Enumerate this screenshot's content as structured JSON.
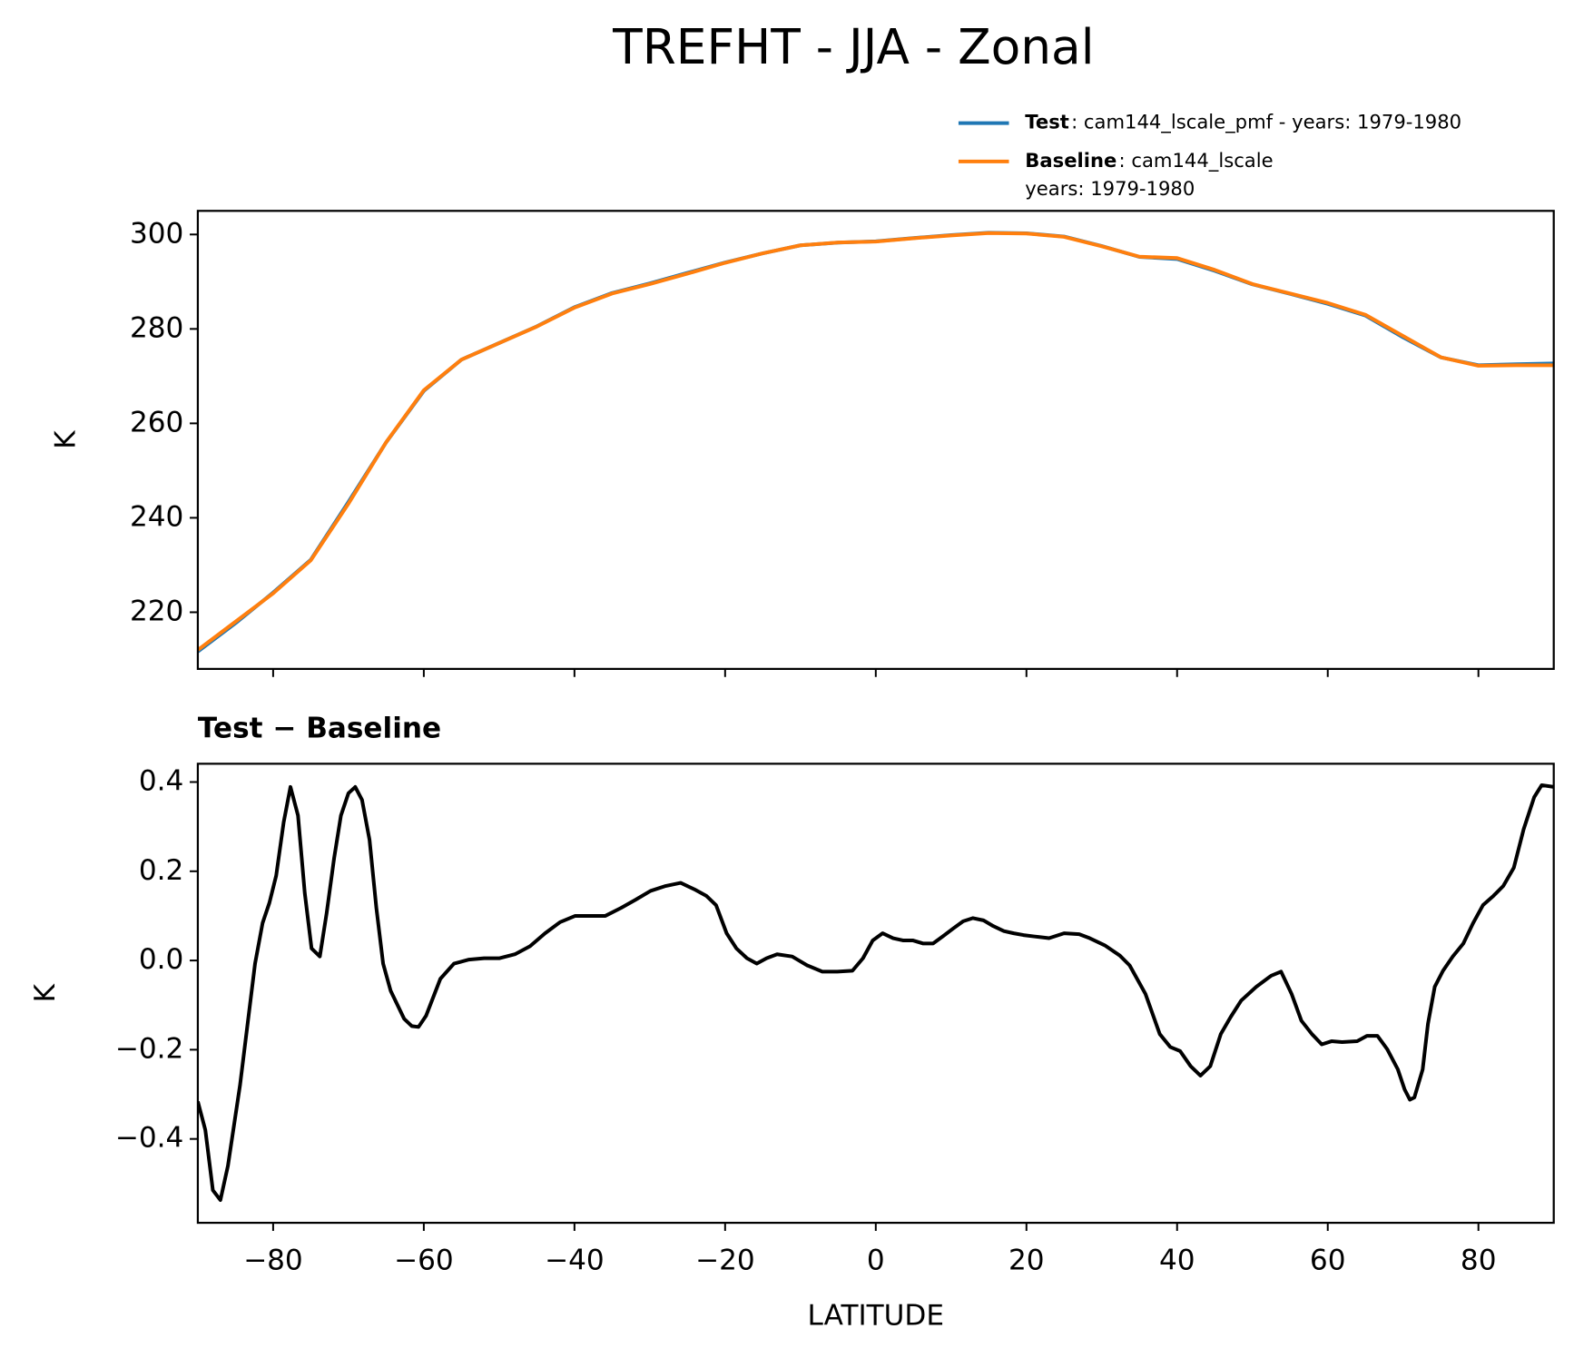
{
  "chart_data": [
    {
      "type": "line",
      "title": "TREFHT - JJA - Zonal",
      "ylabel": "K",
      "legend": "outside upper right",
      "xticklabels": false,
      "x": [
        -90,
        -85,
        -80,
        -75,
        -70,
        -65,
        -60,
        -55,
        -50,
        -45,
        -40,
        -35,
        -30,
        -25,
        -20,
        -15,
        -10,
        -5,
        0,
        5,
        10,
        15,
        20,
        25,
        30,
        35,
        40,
        45,
        50,
        55,
        60,
        65,
        70,
        75,
        80,
        85,
        90
      ],
      "series": [
        {
          "name": "Test",
          "description": [
            ": cam144_lscale_pmf - years: 1979-1980"
          ],
          "color": "#1f77b4",
          "values": [
            211.68,
            217.67,
            224.16,
            231.12,
            243.38,
            255.97,
            266.87,
            273.5,
            277.01,
            280.54,
            284.6,
            287.6,
            289.65,
            291.87,
            294.07,
            296.0,
            297.7,
            298.28,
            298.55,
            299.25,
            299.87,
            300.38,
            300.26,
            299.56,
            297.54,
            295.25,
            294.8,
            292.3,
            289.44,
            287.43,
            285.32,
            282.83,
            278.21,
            273.98,
            272.31,
            272.52,
            272.69
          ]
        },
        {
          "name": "Baseline",
          "description": [
            ": cam144_lscale",
            "years: 1979-1980"
          ],
          "color": "#ff7f0e",
          "values": [
            212,
            218,
            224,
            231,
            243,
            256,
            267,
            273.5,
            277,
            280.5,
            284.5,
            287.5,
            289.5,
            291.7,
            294,
            296,
            297.7,
            298.3,
            298.5,
            299.2,
            299.8,
            300.3,
            300.2,
            299.5,
            297.5,
            295.3,
            295,
            292.5,
            289.5,
            287.5,
            285.5,
            283,
            278.5,
            274,
            272.2,
            272.3,
            272.3
          ]
        }
      ],
      "xlim": [
        -90,
        90
      ],
      "xticks": [
        {
          "value": -80,
          "label": "−80"
        },
        {
          "value": -60,
          "label": "−60"
        },
        {
          "value": -40,
          "label": "−40"
        },
        {
          "value": -20,
          "label": "−20"
        },
        0,
        20,
        40,
        60,
        80
      ],
      "ylim": [
        208,
        305
      ],
      "yticks": [
        220,
        240,
        260,
        280,
        300
      ]
    },
    {
      "type": "line",
      "title": "Test − Baseline",
      "ylabel": "K",
      "xlabel": "LATITUDE",
      "xticklabels": true,
      "color": "#000000",
      "x": [
        -90,
        -89,
        -88,
        -87,
        -86,
        -84.4,
        -82.4,
        -81.4,
        -80.5,
        -79.6,
        -78.6,
        -77.7,
        -76.7,
        -75.8,
        -74.9,
        -73.8,
        -72.9,
        -71.9,
        -71,
        -70,
        -69.1,
        -68.2,
        -67.2,
        -66.3,
        -65.4,
        -64.4,
        -62.6,
        -61.6,
        -60.7,
        -59.7,
        -57.8,
        -56,
        -54,
        -52,
        -50,
        -47.9,
        -45.9,
        -43.9,
        -41.9,
        -39.9,
        -37.9,
        -35.9,
        -33.8,
        -31.9,
        -29.9,
        -27.9,
        -25.9,
        -23.9,
        -22.5,
        -21.2,
        -19.8,
        -18.5,
        -17.1,
        -15.8,
        -14.5,
        -13.1,
        -11.1,
        -9.1,
        -7.1,
        -5.1,
        -3.1,
        -1.7,
        -0.4,
        0.9,
        2.3,
        3.6,
        4.9,
        6.3,
        7.6,
        8.9,
        10.3,
        11.6,
        12.9,
        14.3,
        15.6,
        17,
        18.3,
        19.6,
        21,
        23,
        25,
        27,
        28.4,
        30.4,
        32.4,
        33.7,
        35.8,
        37.7,
        39.1,
        40.4,
        41.8,
        43.1,
        44.4,
        45.8,
        47.1,
        48.5,
        50.5,
        52.5,
        53.8,
        55.2,
        56.5,
        57.9,
        59.2,
        60.5,
        61.9,
        63.9,
        65.2,
        66.6,
        67.9,
        69.3,
        70.2,
        70.9,
        71.5,
        72.6,
        73.3,
        74.2,
        75.3,
        76.6,
        78,
        79.3,
        80.6,
        82,
        83.3,
        84.7,
        86,
        87.4,
        88.4,
        90
      ],
      "values": [
        -0.316,
        -0.38,
        -0.515,
        -0.537,
        -0.46,
        -0.28,
        -0.007,
        0.084,
        0.129,
        0.19,
        0.31,
        0.389,
        0.325,
        0.151,
        0.027,
        0.009,
        0.106,
        0.23,
        0.325,
        0.375,
        0.389,
        0.36,
        0.27,
        0.118,
        -0.007,
        -0.068,
        -0.131,
        -0.147,
        -0.149,
        -0.124,
        -0.041,
        -0.007,
        0.002,
        0.005,
        0.005,
        0.014,
        0.032,
        0.061,
        0.086,
        0.1,
        0.1,
        0.1,
        0.118,
        0.136,
        0.156,
        0.167,
        0.174,
        0.158,
        0.145,
        0.124,
        0.061,
        0.027,
        0.005,
        -0.007,
        0.005,
        0.014,
        0.009,
        -0.011,
        -0.025,
        -0.025,
        -0.023,
        0.005,
        0.045,
        0.061,
        0.05,
        0.045,
        0.045,
        0.038,
        0.038,
        0.054,
        0.072,
        0.088,
        0.095,
        0.09,
        0.077,
        0.066,
        0.061,
        0.057,
        0.054,
        0.05,
        0.061,
        0.059,
        0.05,
        0.034,
        0.011,
        -0.011,
        -0.075,
        -0.165,
        -0.194,
        -0.203,
        -0.237,
        -0.258,
        -0.237,
        -0.165,
        -0.127,
        -0.09,
        -0.059,
        -0.034,
        -0.025,
        -0.075,
        -0.135,
        -0.165,
        -0.188,
        -0.181,
        -0.183,
        -0.181,
        -0.169,
        -0.169,
        -0.199,
        -0.244,
        -0.289,
        -0.312,
        -0.307,
        -0.244,
        -0.142,
        -0.059,
        -0.023,
        0.009,
        0.038,
        0.084,
        0.124,
        0.145,
        0.167,
        0.208,
        0.294,
        0.366,
        0.393,
        0.389
      ],
      "xlim": [
        -90,
        90
      ],
      "xticks": [
        {
          "value": -80,
          "label": "−80"
        },
        {
          "value": -60,
          "label": "−60"
        },
        {
          "value": -40,
          "label": "−40"
        },
        {
          "value": -20,
          "label": "−20"
        },
        0,
        20,
        40,
        60,
        80
      ],
      "ylim": [
        -0.588,
        0.441
      ],
      "yticks": [
        {
          "value": -0.4,
          "label": "−0.4"
        },
        {
          "value": -0.2,
          "label": "−0.2"
        },
        {
          "value": 0,
          "label": "0.0"
        },
        {
          "value": 0.2,
          "label": "0.2"
        },
        {
          "value": 0.4,
          "label": "0.4"
        }
      ]
    }
  ]
}
